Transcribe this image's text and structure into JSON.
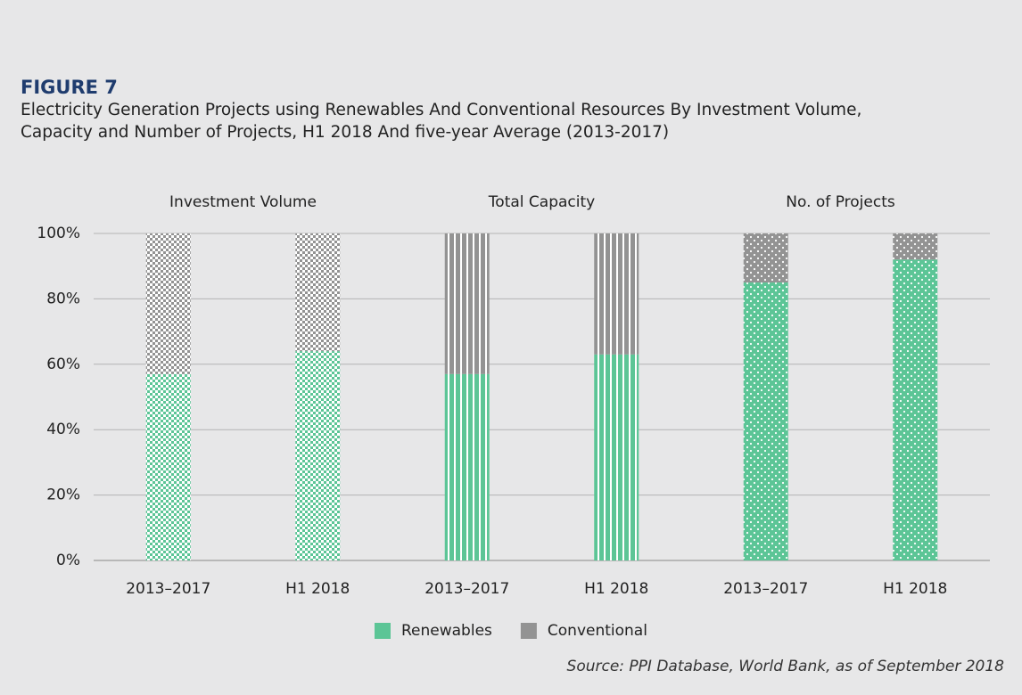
{
  "chart_data": {
    "type": "bar",
    "stacked": true,
    "title": "FIGURE 7",
    "subtitle": "Electricity Generation Projects using Renewables And Conventional Resources By Investment Volume, Capacity and Number of Projects, H1 2018 And five-year Average (2013-2017)",
    "source": "Source: PPI Database, World Bank, as of September 2018",
    "groups": [
      "Investment Volume",
      "Total Capacity",
      "No. of Projects"
    ],
    "group_patterns": [
      "checker",
      "stripes",
      "dots"
    ],
    "categories": [
      "2013–2017",
      "H1 2018",
      "2013–2017",
      "H1 2018",
      "2013–2017",
      "H1 2018"
    ],
    "series": [
      {
        "name": "Renewables",
        "color": "#5cc596",
        "values": [
          57,
          64,
          57,
          63,
          85,
          92
        ]
      },
      {
        "name": "Conventional",
        "color": "#939393",
        "values": [
          43,
          36,
          43,
          37,
          15,
          8
        ]
      }
    ],
    "ylim": [
      0,
      100
    ],
    "yticks": [
      {
        "value": 0,
        "label": "0%"
      },
      {
        "value": 20,
        "label": "20%"
      },
      {
        "value": 40,
        "label": "40%"
      },
      {
        "value": 60,
        "label": "60%"
      },
      {
        "value": 80,
        "label": "80%"
      },
      {
        "value": 100,
        "label": "100%"
      }
    ],
    "grid": true,
    "legend": "bottom"
  }
}
